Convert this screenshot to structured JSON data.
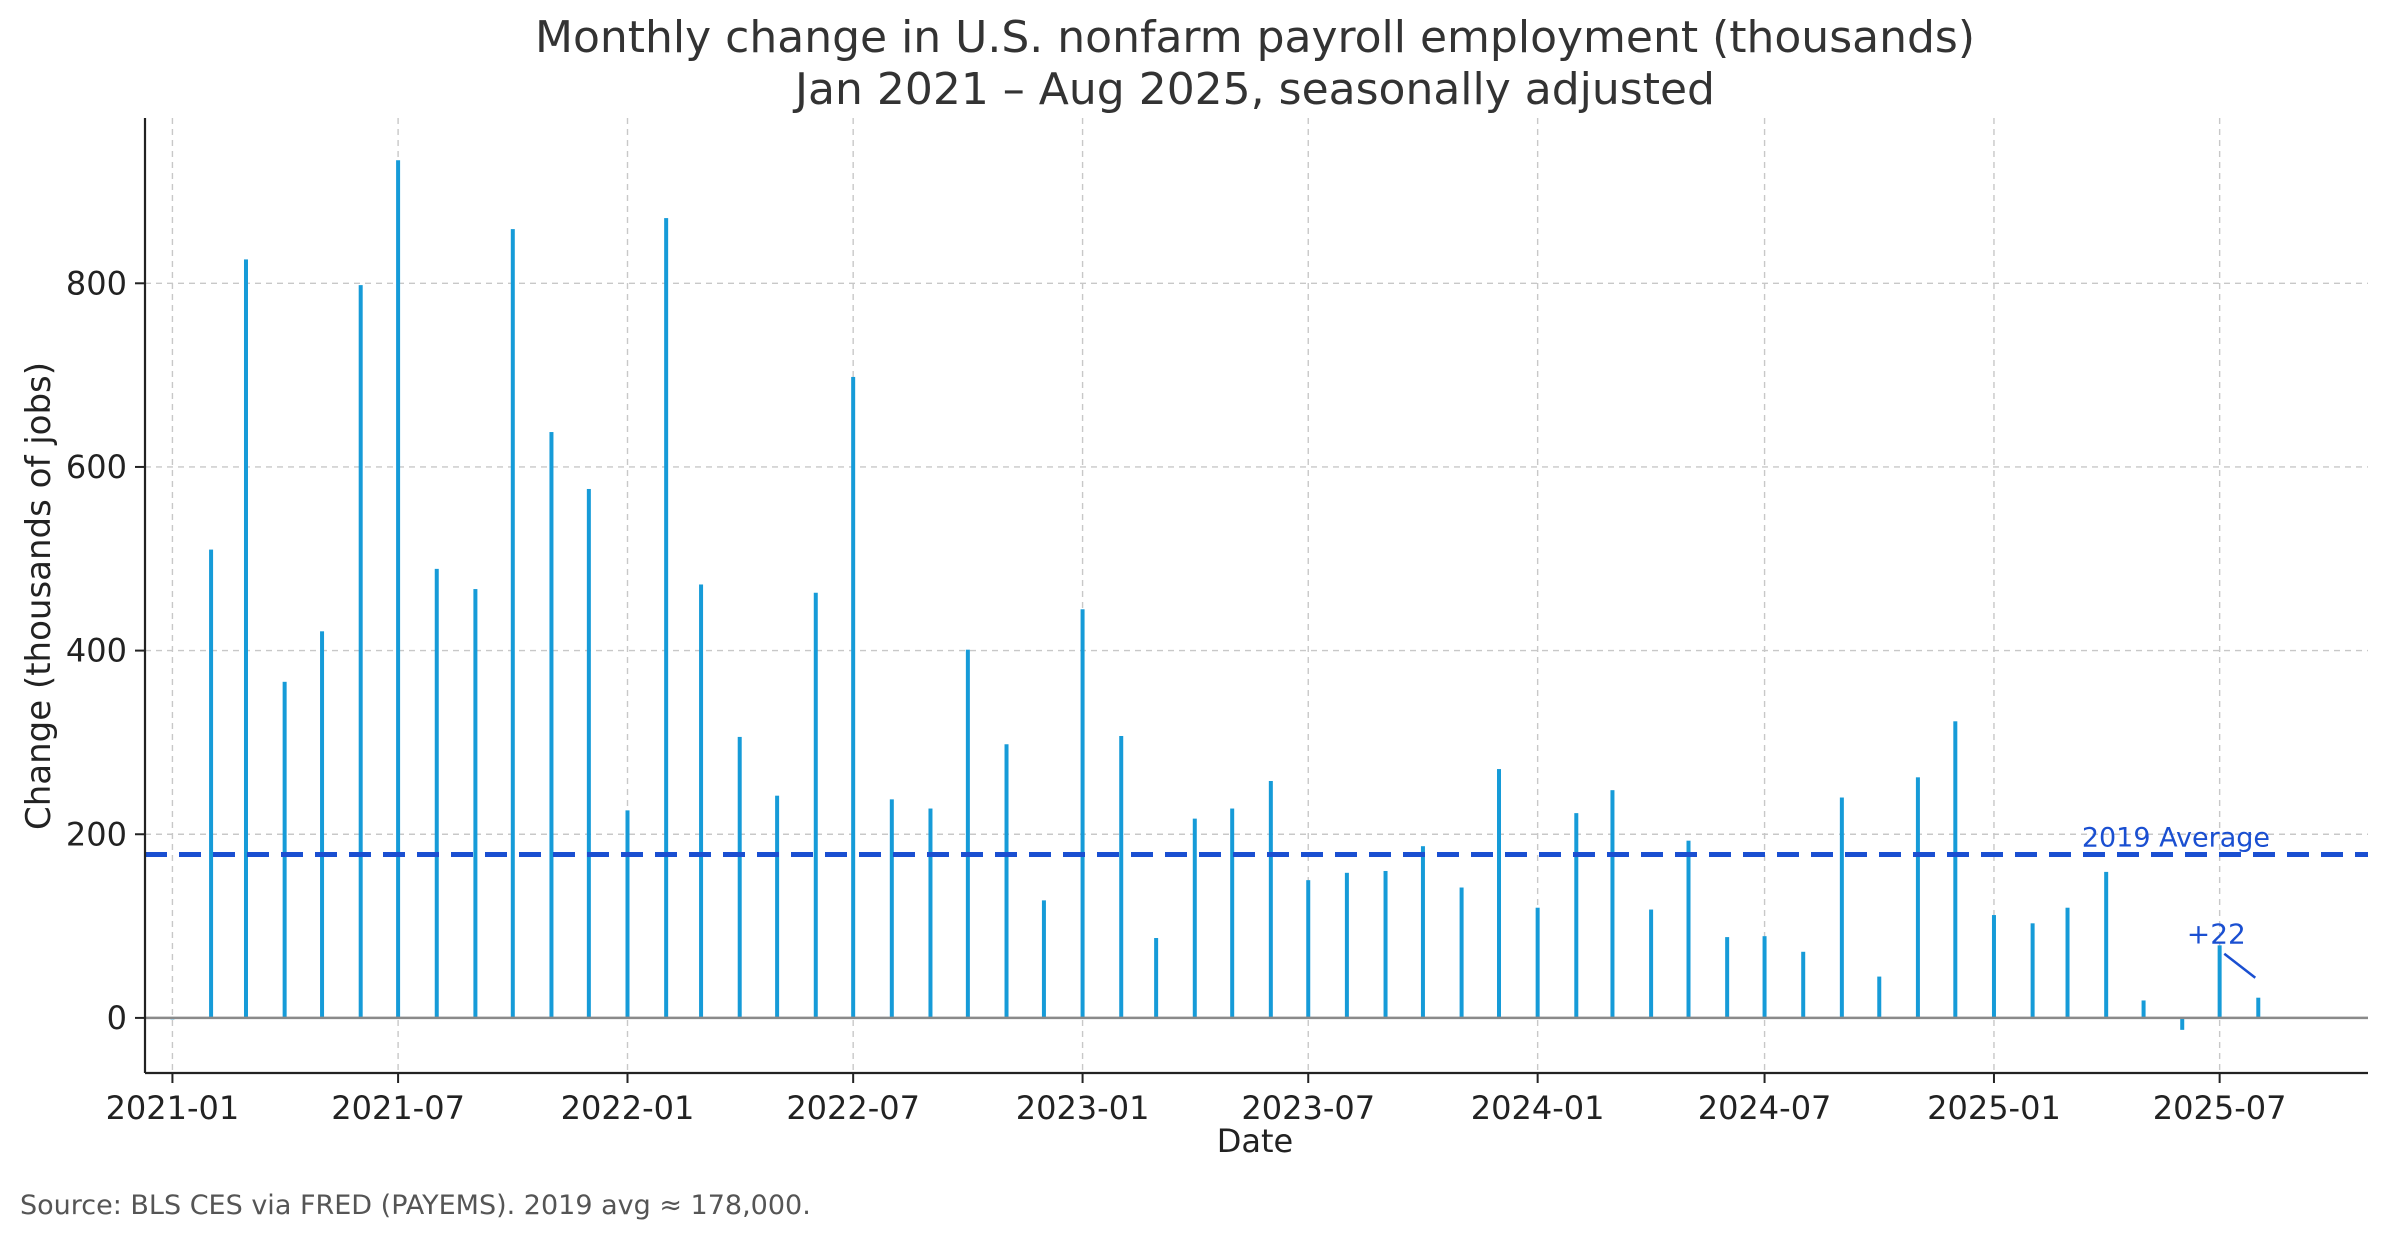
{
  "chart_data": {
    "type": "bar",
    "title": "Monthly change in U.S. nonfarm payroll employment (thousands)",
    "subtitle": "Jan 2021 – Aug 2025, seasonally adjusted",
    "xlabel": "Date",
    "ylabel": "Change (thousands of jobs)",
    "source_note": "Source: BLS CES via FRED (PAYEMS). 2019 avg ≈ 178,000.",
    "x_start": "2021-01-01",
    "xlim": [
      "2020-12-10",
      "2025-10-28"
    ],
    "ylim": [
      -60,
      980
    ],
    "y_ticks": [
      0,
      200,
      400,
      600,
      800
    ],
    "x_ticks": [
      "2021-01",
      "2021-07",
      "2022-01",
      "2022-07",
      "2023-01",
      "2023-07",
      "2024-01",
      "2024-07",
      "2025-01",
      "2025-07"
    ],
    "grid": true,
    "bar_color": "#169BD8",
    "reference_line": {
      "value": 178,
      "label": "2019 Average",
      "color": "#1A4FD1",
      "style": "dashed"
    },
    "annotation": {
      "text": "+22",
      "target_date": "2025-08-01",
      "target_value": 22,
      "color": "#1A4FD1"
    },
    "series": [
      {
        "dates": [
          "2021-01-01",
          "2021-02-01",
          "2021-03-01",
          "2021-04-01",
          "2021-05-01",
          "2021-06-01",
          "2021-07-01",
          "2021-08-01",
          "2021-09-01",
          "2021-10-01",
          "2021-11-01",
          "2021-12-01",
          "2022-01-01",
          "2022-02-01",
          "2022-03-01",
          "2022-04-01",
          "2022-05-01",
          "2022-06-01",
          "2022-07-01",
          "2022-08-01",
          "2022-09-01",
          "2022-10-01",
          "2022-11-01",
          "2022-12-01",
          "2023-01-01",
          "2023-02-01",
          "2023-03-01",
          "2023-04-01",
          "2023-05-01",
          "2023-06-01",
          "2023-07-01",
          "2023-08-01",
          "2023-09-01",
          "2023-10-01",
          "2023-11-01",
          "2023-12-01",
          "2024-01-01",
          "2024-02-01",
          "2024-03-01",
          "2024-04-01",
          "2024-05-01",
          "2024-06-01",
          "2024-07-01",
          "2024-08-01",
          "2024-09-01",
          "2024-10-01",
          "2024-11-01",
          "2024-12-01",
          "2025-01-01",
          "2025-02-01",
          "2025-03-01",
          "2025-04-01",
          "2025-05-01",
          "2025-06-01",
          "2025-07-01",
          "2025-08-01"
        ],
        "values": [
          0,
          510,
          826,
          366,
          421,
          798,
          934,
          489,
          467,
          859,
          638,
          576,
          226,
          871,
          472,
          306,
          242,
          463,
          698,
          238,
          228,
          401,
          298,
          128,
          445,
          307,
          87,
          217,
          228,
          258,
          150,
          158,
          160,
          187,
          142,
          271,
          120,
          223,
          248,
          118,
          193,
          88,
          89,
          72,
          240,
          45,
          262,
          323,
          112,
          103,
          120,
          159,
          19,
          -13,
          79,
          22
        ]
      }
    ]
  }
}
